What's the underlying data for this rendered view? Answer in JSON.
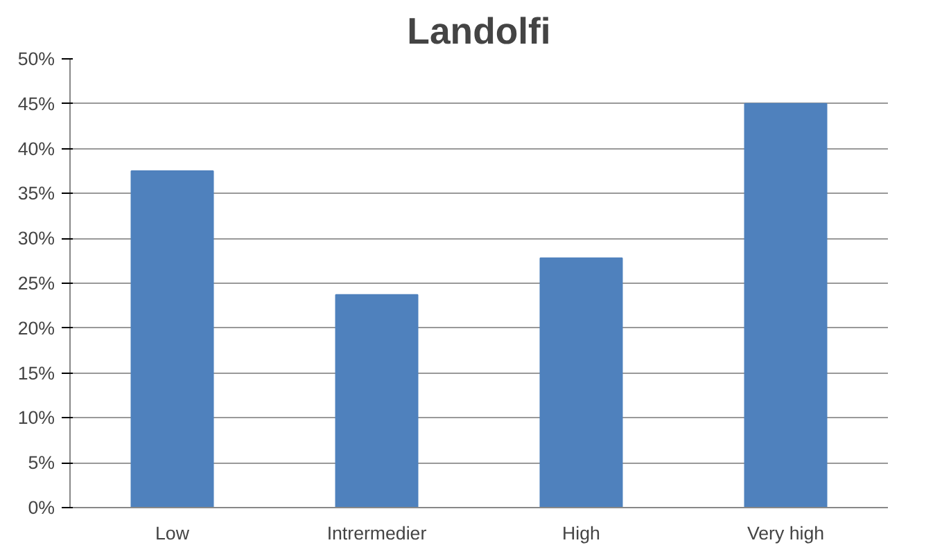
{
  "chart_data": {
    "type": "bar",
    "title": "Landolfi",
    "categories": [
      "Low",
      "Intrermedier",
      "High",
      "Very high"
    ],
    "values": [
      37.5,
      23.7,
      27.8,
      45.0
    ],
    "color": "#4f81bd",
    "ylim": [
      0,
      50
    ],
    "yticks": [
      {
        "value": 0,
        "label": "0%"
      },
      {
        "value": 5,
        "label": "5%"
      },
      {
        "value": 10,
        "label": "10%"
      },
      {
        "value": 15,
        "label": "15%"
      },
      {
        "value": 20,
        "label": "20%"
      },
      {
        "value": 25,
        "label": "25%"
      },
      {
        "value": 30,
        "label": "30%"
      },
      {
        "value": 35,
        "label": "35%"
      },
      {
        "value": 40,
        "label": "40%"
      },
      {
        "value": 45,
        "label": "45%"
      },
      {
        "value": 50,
        "label": "50%"
      }
    ],
    "grid": "y"
  }
}
